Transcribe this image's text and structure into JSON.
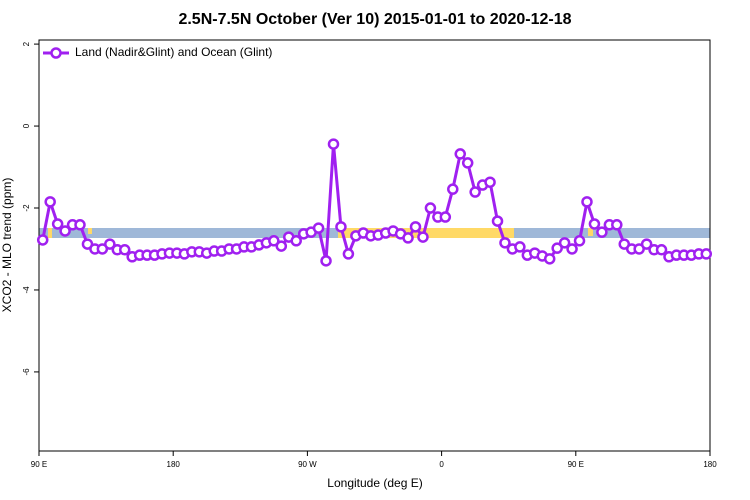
{
  "chart_data": {
    "type": "line",
    "title": "2.5N-7.5N October (Ver 10)   2015-01-01 to 2020-12-18",
    "xlabel": "Longitude (deg E)",
    "ylabel": "XCO2 - MLO trend (ppm)",
    "xlim": [
      90,
      540
    ],
    "ylim": [
      -7.93,
      2.1
    ],
    "xticks": [
      {
        "value": 90,
        "label": "90 E"
      },
      180,
      {
        "value": 270,
        "label": "90 W"
      },
      {
        "value": 360,
        "label": "0"
      },
      {
        "value": 450,
        "label": "90 E"
      },
      {
        "value": 540,
        "label": "180"
      }
    ],
    "yticks": [
      2,
      0,
      -2,
      -4,
      -6
    ],
    "legend": "top-left",
    "x": [
      92.5,
      97.5,
      102.5,
      107.5,
      112.5,
      117.5,
      122.5,
      127.5,
      132.5,
      137.5,
      142.5,
      147.5,
      152.5,
      157.5,
      162.5,
      167.5,
      172.5,
      177.5,
      182.5,
      187.5,
      192.5,
      197.5,
      202.5,
      207.5,
      212.5,
      217.5,
      222.5,
      227.5,
      232.5,
      237.5,
      242.5,
      247.5,
      252.5,
      257.5,
      262.5,
      267.5,
      272.5,
      277.5,
      282.5,
      287.5,
      292.5,
      297.5,
      302.5,
      307.5,
      312.5,
      317.5,
      322.5,
      327.5,
      332.5,
      337.5,
      342.5,
      347.5,
      352.5,
      357.5,
      362.5,
      367.5,
      372.5,
      377.5,
      382.5,
      387.5,
      392.5,
      397.5,
      402.5,
      407.5,
      412.5,
      417.5,
      422.5,
      427.5,
      432.5,
      437.5,
      442.5,
      447.5,
      452.5,
      457.5,
      462.5,
      467.5,
      472.5,
      477.5,
      482.5,
      487.5,
      492.5,
      497.5,
      502.5,
      507.5,
      512.5,
      517.5,
      522.5,
      527.5,
      532.5,
      537.5
    ],
    "series": [
      {
        "name": "Land (Nadir&Glint) and Ocean (Glint)",
        "color": "#a020f0",
        "values": [
          -2.78,
          -1.85,
          -2.39,
          -2.56,
          -2.41,
          -2.41,
          -2.88,
          -3.0,
          -3.0,
          -2.88,
          -3.02,
          -3.02,
          -3.19,
          -3.15,
          -3.15,
          -3.15,
          -3.12,
          -3.1,
          -3.1,
          -3.12,
          -3.07,
          -3.07,
          -3.1,
          -3.05,
          -3.05,
          -3.0,
          -3.0,
          -2.95,
          -2.95,
          -2.9,
          -2.85,
          -2.8,
          -2.93,
          -2.71,
          -2.8,
          -2.63,
          -2.59,
          -2.49,
          -3.29,
          -0.44,
          -2.46,
          -3.12,
          -2.68,
          -2.61,
          -2.68,
          -2.66,
          -2.61,
          -2.56,
          -2.63,
          -2.73,
          -2.46,
          -2.71,
          -2.0,
          -2.22,
          -2.22,
          -1.54,
          -0.68,
          -0.9,
          -1.61,
          -1.44,
          -1.37,
          -2.32,
          -2.85,
          -3.0,
          -2.95,
          -3.15,
          -3.1,
          -3.17,
          -3.24,
          -2.98,
          -2.85,
          -3.0,
          -2.8,
          -1.85,
          -2.39,
          -2.59,
          -2.41,
          -2.41,
          -2.88,
          -3.0,
          -3.0,
          -2.88,
          -3.02,
          -3.02,
          -3.19,
          -3.15,
          -3.15,
          -3.15,
          -3.12,
          -3.12
        ]
      }
    ]
  }
}
